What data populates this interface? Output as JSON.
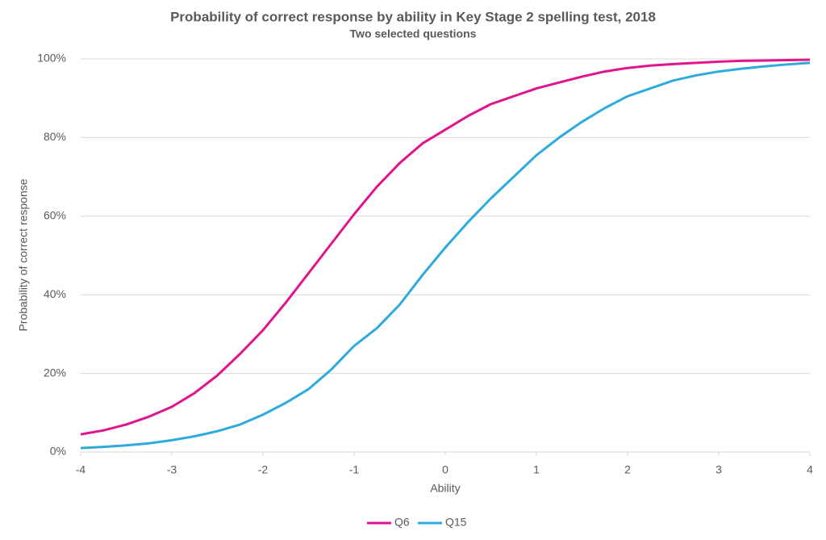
{
  "chart_data": {
    "type": "line",
    "title": "Probability of correct response by ability in Key Stage 2 spelling test, 2018",
    "subtitle": "Two selected questions",
    "x_label": "Ability",
    "y_label": "Probability of correct response",
    "x": [
      -4,
      -3.75,
      -3.5,
      -3.25,
      -3,
      -2.75,
      -2.5,
      -2.25,
      -2,
      -1.75,
      -1.5,
      -1.25,
      -1,
      -0.75,
      -0.5,
      -0.25,
      0,
      0.25,
      0.5,
      0.75,
      1,
      1.25,
      1.5,
      1.75,
      2,
      2.25,
      2.5,
      2.75,
      3,
      3.25,
      3.5,
      3.75,
      4
    ],
    "series": [
      {
        "name": "Q6",
        "color": "#e0148c",
        "values": [
          4.5,
          5.5,
          7,
          9,
          11.5,
          15,
          19.5,
          25,
          31,
          38,
          45.5,
          53,
          60.5,
          67.5,
          73.5,
          78.5,
          82,
          85.5,
          88.5,
          90.5,
          92.5,
          94,
          95.5,
          96.8,
          97.7,
          98.3,
          98.7,
          99,
          99.3,
          99.5,
          99.6,
          99.7,
          99.8
        ]
      },
      {
        "name": "Q15",
        "color": "#2eaadc",
        "values": [
          1,
          1.3,
          1.7,
          2.2,
          3,
          4,
          5.3,
          7,
          9.5,
          12.5,
          16,
          21,
          27,
          31.5,
          37.5,
          45,
          52,
          58.5,
          64.5,
          70,
          75.5,
          80,
          84,
          87.5,
          90.5,
          92.5,
          94.5,
          95.8,
          96.8,
          97.5,
          98.1,
          98.6,
          99
        ]
      }
    ],
    "xlim": [
      -4,
      4
    ],
    "xticks": [
      -4,
      -3,
      -2,
      -1,
      0,
      1,
      2,
      3,
      4
    ],
    "ylim": [
      0,
      100
    ],
    "yticks": [
      {
        "value": 0,
        "label": "0%"
      },
      {
        "value": 20,
        "label": "20%"
      },
      {
        "value": 40,
        "label": "40%"
      },
      {
        "value": 60,
        "label": "60%"
      },
      {
        "value": 80,
        "label": "80%"
      },
      {
        "value": 100,
        "label": "100%"
      }
    ],
    "grid": true,
    "legend": "bottom"
  }
}
